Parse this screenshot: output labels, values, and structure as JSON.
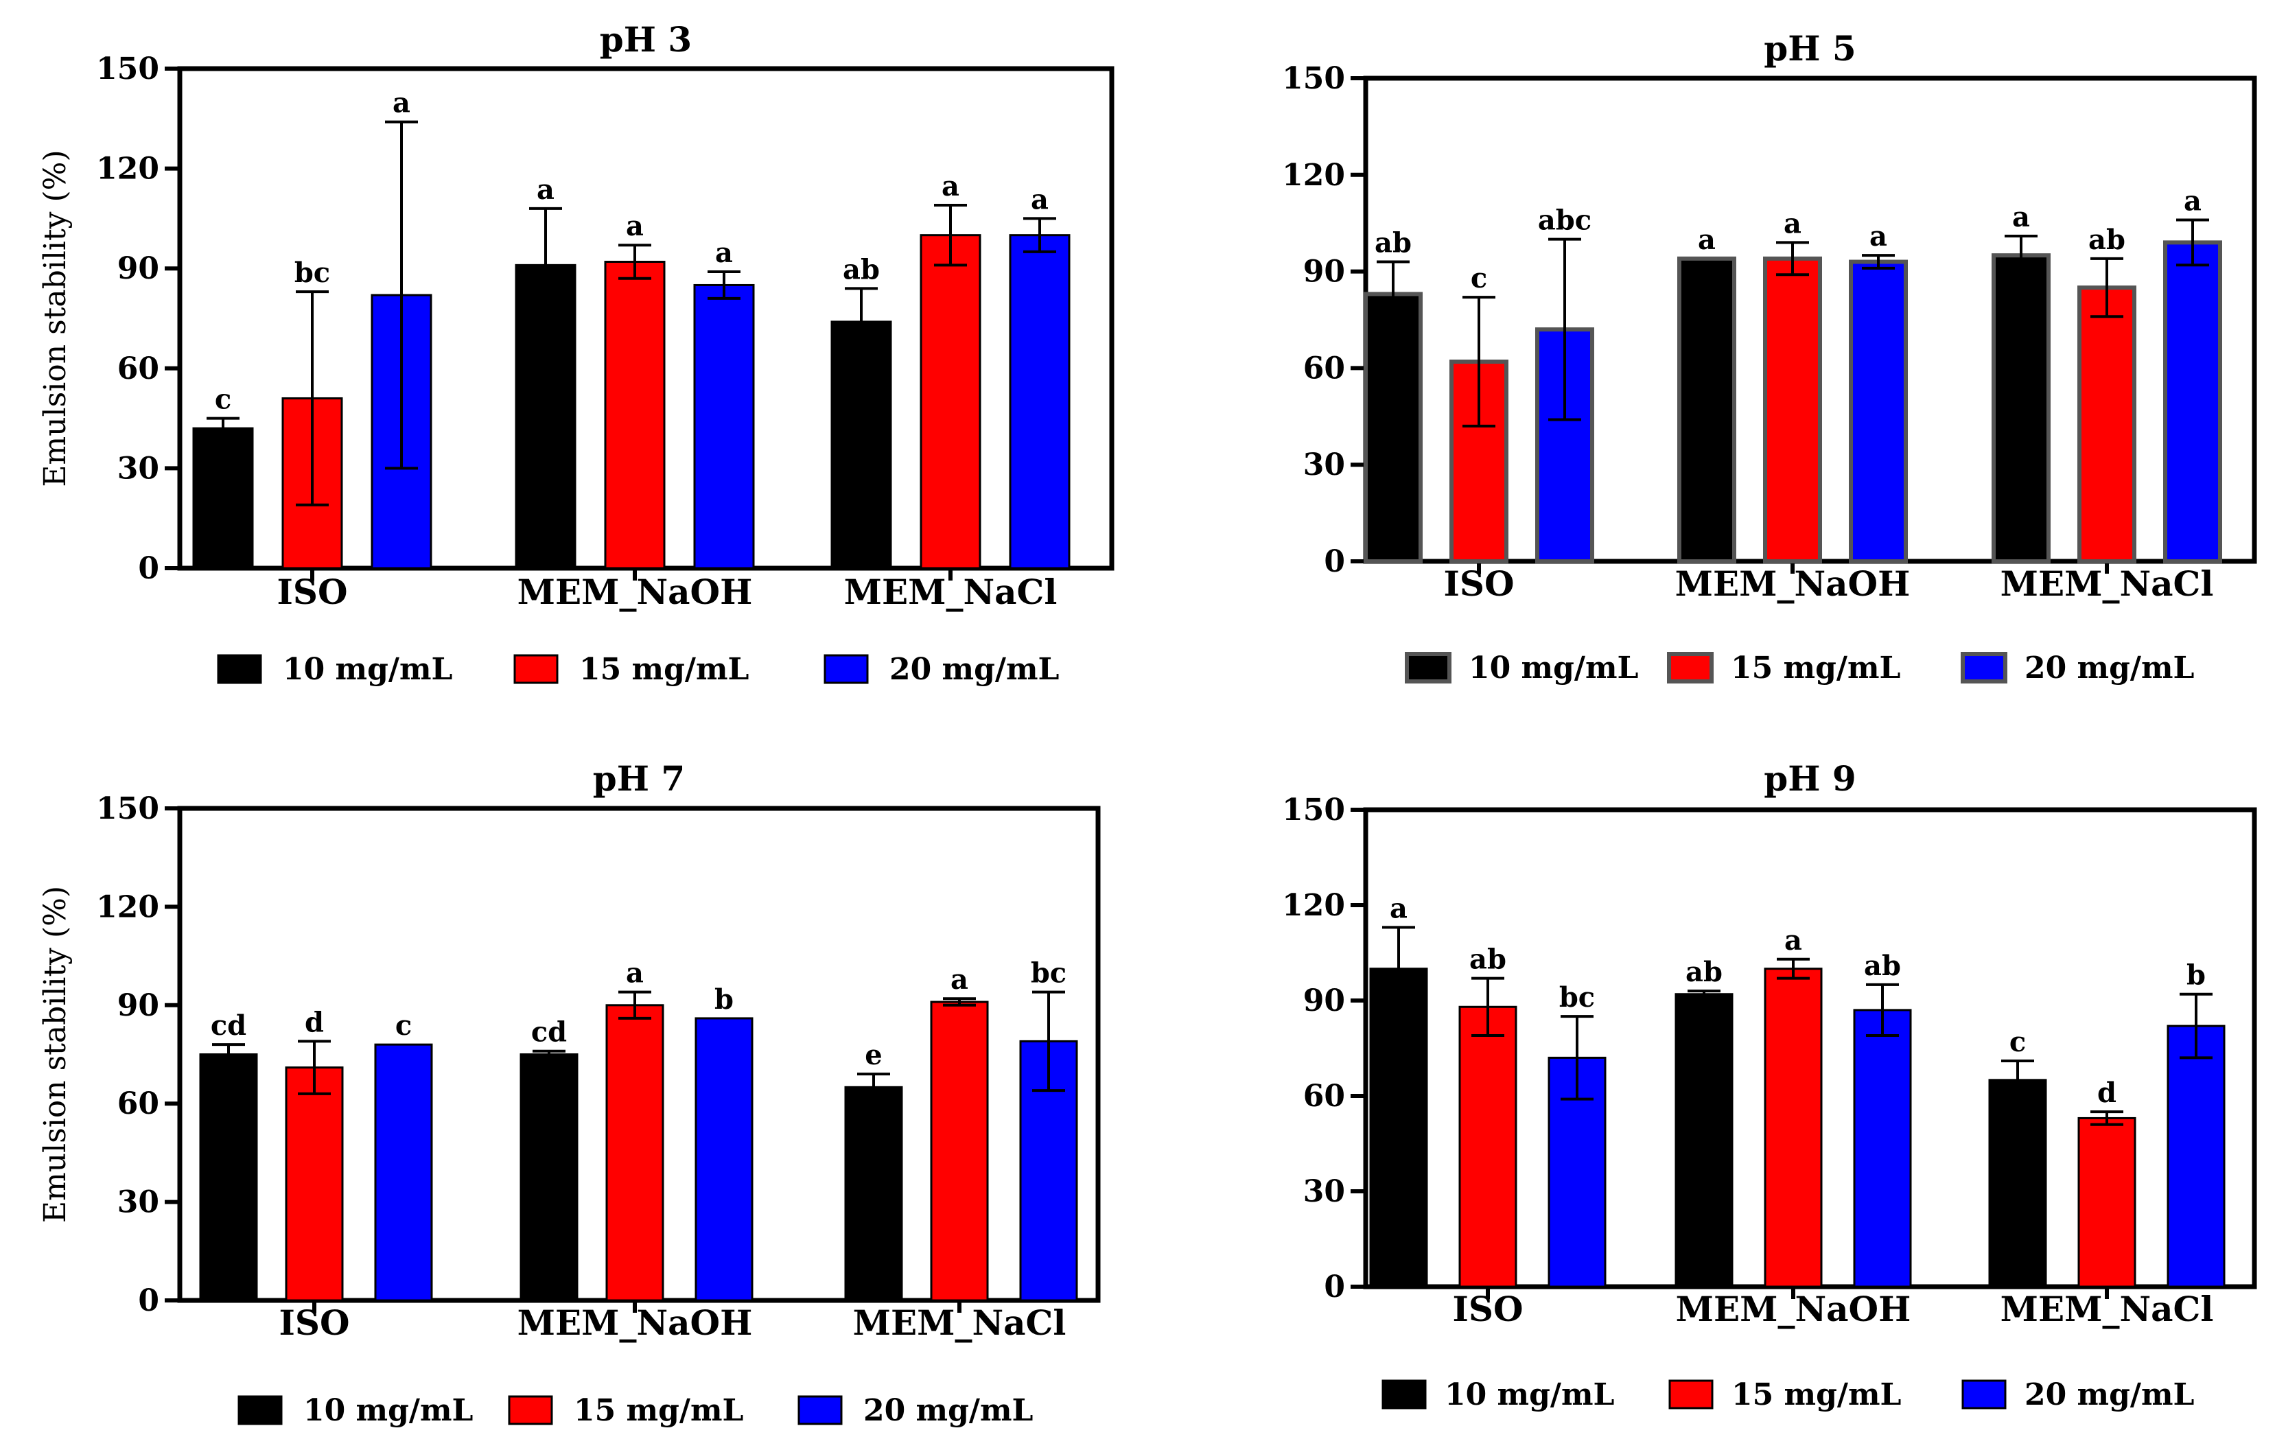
{
  "figure": {
    "shared": {
      "ylabel": "Emulsion stability (%)",
      "categories": [
        "ISO",
        "MEM_NaOH",
        "MEM_NaCl"
      ],
      "legend": [
        "10 mg/mL",
        "15 mg/mL",
        "20 mg/mL"
      ],
      "colors": [
        "#000000",
        "#ff0000",
        "#0000ff"
      ]
    }
  },
  "chart_data": [
    {
      "type": "bar",
      "title": "pH 3",
      "xlabel": "",
      "ylabel": "Emulsion stability (%)",
      "ylim": [
        0,
        150
      ],
      "yticks": [
        0,
        30,
        60,
        90,
        120,
        150
      ],
      "categories": [
        "ISO",
        "MEM_NaOH",
        "MEM_NaCl"
      ],
      "legend_position": "bottom",
      "series": [
        {
          "name": "10 mg/mL",
          "color": "#000000",
          "values": [
            42,
            91,
            74
          ],
          "errors": [
            3,
            17,
            10
          ],
          "labels": [
            "c",
            "a",
            "ab"
          ]
        },
        {
          "name": "15 mg/mL",
          "color": "#ff0000",
          "values": [
            51,
            92,
            100
          ],
          "errors": [
            32,
            5,
            9
          ],
          "labels": [
            "bc",
            "a",
            "a"
          ]
        },
        {
          "name": "20 mg/mL",
          "color": "#0000ff",
          "values": [
            82,
            85,
            100
          ],
          "errors": [
            52,
            4,
            5
          ],
          "labels": [
            "a",
            "a",
            "a"
          ]
        }
      ]
    },
    {
      "type": "bar",
      "title": "pH 5",
      "xlabel": "",
      "ylabel": "",
      "ylim": [
        0,
        150
      ],
      "yticks": [
        0,
        30,
        60,
        90,
        120,
        150
      ],
      "categories": [
        "ISO",
        "MEM_NaOH",
        "MEM_NaCl"
      ],
      "legend_position": "bottom",
      "series": [
        {
          "name": "10 mg/mL",
          "color": "#000000",
          "values": [
            83,
            94,
            95
          ],
          "errors": [
            10,
            0,
            6
          ],
          "labels": [
            "ab",
            "a",
            "a"
          ]
        },
        {
          "name": "15 mg/mL",
          "color": "#ff0000",
          "values": [
            62,
            94,
            85
          ],
          "errors": [
            20,
            5,
            9
          ],
          "labels": [
            "c",
            "a",
            "ab"
          ]
        },
        {
          "name": "20 mg/mL",
          "color": "#0000ff",
          "values": [
            72,
            93,
            99
          ],
          "errors": [
            28,
            2,
            7
          ],
          "labels": [
            "abc",
            "a",
            "a"
          ]
        }
      ]
    },
    {
      "type": "bar",
      "title": "pH 7",
      "xlabel": "",
      "ylabel": "Emulsion stability (%)",
      "ylim": [
        0,
        150
      ],
      "yticks": [
        0,
        30,
        60,
        90,
        120,
        150
      ],
      "categories": [
        "ISO",
        "MEM_NaOH",
        "MEM_NaCl"
      ],
      "legend_position": "bottom",
      "series": [
        {
          "name": "10 mg/mL",
          "color": "#000000",
          "values": [
            75,
            75,
            65
          ],
          "errors": [
            3,
            1,
            4
          ],
          "labels": [
            "cd",
            "cd",
            "e"
          ]
        },
        {
          "name": "15 mg/mL",
          "color": "#ff0000",
          "values": [
            71,
            90,
            91
          ],
          "errors": [
            8,
            4,
            1
          ],
          "labels": [
            "d",
            "a",
            "a"
          ]
        },
        {
          "name": "20 mg/mL",
          "color": "#0000ff",
          "values": [
            78,
            86,
            79
          ],
          "errors": [
            0,
            0,
            15
          ],
          "labels": [
            "c",
            "b",
            "bc"
          ]
        }
      ]
    },
    {
      "type": "bar",
      "title": "pH 9",
      "xlabel": "",
      "ylabel": "",
      "ylim": [
        0,
        150
      ],
      "yticks": [
        0,
        30,
        60,
        90,
        120,
        150
      ],
      "categories": [
        "ISO",
        "MEM_NaOH",
        "MEM_NaCl"
      ],
      "legend_position": "bottom",
      "series": [
        {
          "name": "10 mg/mL",
          "color": "#000000",
          "values": [
            100,
            92,
            65
          ],
          "errors": [
            13,
            1,
            6
          ],
          "labels": [
            "a",
            "ab",
            "c"
          ]
        },
        {
          "name": "15 mg/mL",
          "color": "#ff0000",
          "values": [
            88,
            100,
            53
          ],
          "errors": [
            9,
            3,
            2
          ],
          "labels": [
            "ab",
            "a",
            "d"
          ]
        },
        {
          "name": "20 mg/mL",
          "color": "#0000ff",
          "values": [
            72,
            87,
            82
          ],
          "errors": [
            13,
            8,
            10
          ],
          "labels": [
            "bc",
            "ab",
            "b"
          ]
        }
      ]
    }
  ]
}
